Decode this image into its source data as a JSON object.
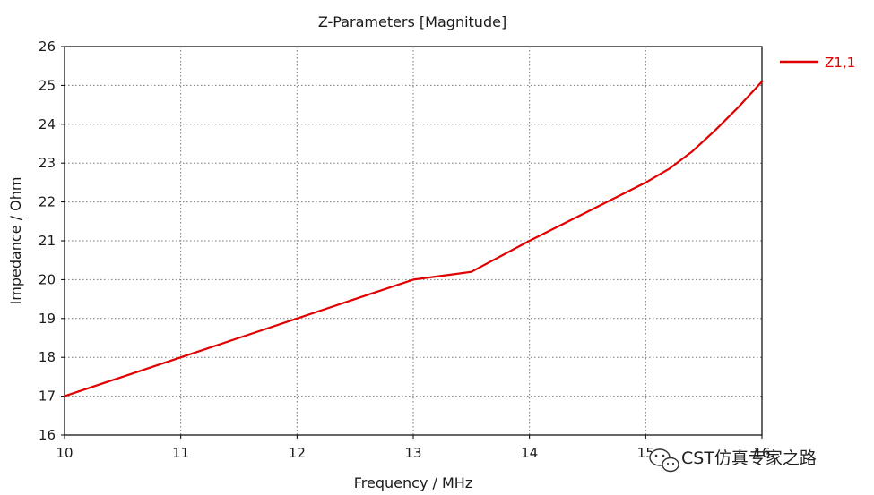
{
  "chart_data": {
    "type": "line",
    "title": "Z-Parameters [Magnitude]",
    "xlabel": "Frequency / MHz",
    "ylabel": "Impedance / Ohm",
    "xlim": [
      10,
      16
    ],
    "ylim": [
      16,
      26
    ],
    "x_ticks": [
      10,
      11,
      12,
      13,
      14,
      15,
      16
    ],
    "y_ticks": [
      16,
      17,
      18,
      19,
      20,
      21,
      22,
      23,
      24,
      25,
      26
    ],
    "grid": true,
    "legend_position": "right",
    "series": [
      {
        "name": "Z1,1",
        "color": "#e00000",
        "x": [
          10,
          10.5,
          11,
          11.5,
          12,
          12.5,
          13,
          13.5,
          14,
          14.5,
          15,
          15.2,
          15.4,
          15.6,
          15.8,
          16
        ],
        "y": [
          17.0,
          17.5,
          18.0,
          18.5,
          19.0,
          19.5,
          20.0,
          20.2,
          21.0,
          21.75,
          22.5,
          22.85,
          23.3,
          23.85,
          24.45,
          25.1
        ]
      }
    ]
  },
  "watermark": {
    "text": "CST仿真专家之路",
    "icon": "wechat-icon"
  }
}
